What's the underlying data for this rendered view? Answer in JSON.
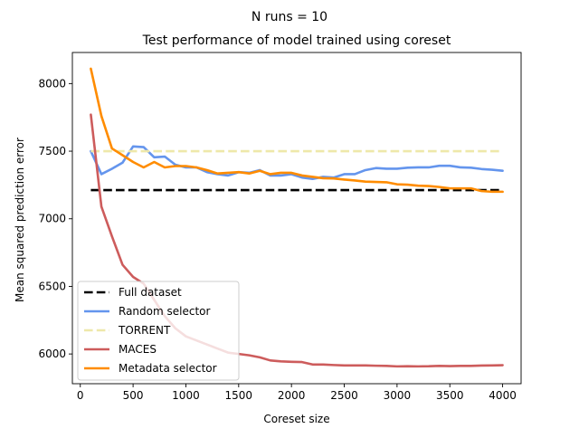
{
  "suptitle": "N runs = 10",
  "chart_data": {
    "type": "line",
    "title": "Test performance of model trained using coreset",
    "xlabel": "Coreset size",
    "ylabel": "Mean squared prediction error",
    "xlim": [
      -75,
      4175
    ],
    "ylim": [
      5780,
      8230
    ],
    "xticks": [
      0,
      500,
      1000,
      1500,
      2000,
      2500,
      3000,
      3500,
      4000
    ],
    "yticks": [
      6000,
      6500,
      7000,
      7500,
      8000
    ],
    "xtick_labels": [
      "0",
      "500",
      "1000",
      "1500",
      "2000",
      "2500",
      "3000",
      "3500",
      "4000"
    ],
    "ytick_labels": [
      "6000",
      "6500",
      "7000",
      "7500",
      "8000"
    ],
    "grid": false,
    "legend_position": "lower-left",
    "x": [
      100,
      200,
      300,
      400,
      500,
      600,
      700,
      800,
      900,
      1000,
      1100,
      1200,
      1300,
      1400,
      1500,
      1600,
      1700,
      1800,
      1900,
      2000,
      2100,
      2200,
      2300,
      2400,
      2500,
      2600,
      2700,
      2800,
      2900,
      3000,
      3100,
      3200,
      3300,
      3400,
      3500,
      3600,
      3700,
      3800,
      3900,
      4000
    ],
    "series": [
      {
        "name": "Full dataset",
        "color": "#000000",
        "dashed": true,
        "values": [
          7212,
          7212,
          7212,
          7212,
          7212,
          7212,
          7212,
          7212,
          7212,
          7212,
          7212,
          7212,
          7212,
          7212,
          7212,
          7212,
          7212,
          7212,
          7212,
          7212,
          7212,
          7212,
          7212,
          7212,
          7212,
          7212,
          7212,
          7212,
          7212,
          7212,
          7212,
          7212,
          7212,
          7212,
          7212,
          7212,
          7212,
          7212,
          7212,
          7212
        ]
      },
      {
        "name": "Random selector",
        "color": "#6495ed",
        "dashed": false,
        "values": [
          7500,
          7330,
          7370,
          7415,
          7535,
          7530,
          7455,
          7460,
          7400,
          7380,
          7380,
          7345,
          7330,
          7320,
          7345,
          7340,
          7360,
          7320,
          7320,
          7330,
          7305,
          7295,
          7310,
          7305,
          7330,
          7330,
          7360,
          7375,
          7370,
          7370,
          7378,
          7380,
          7380,
          7392,
          7392,
          7380,
          7378,
          7368,
          7363,
          7355
        ]
      },
      {
        "name": "TORRENT",
        "color": "#eee8aa",
        "dashed": true,
        "values": [
          7500,
          7500,
          7500,
          7500,
          7500,
          7500,
          7500,
          7500,
          7500,
          7500,
          7500,
          7500,
          7500,
          7500,
          7500,
          7500,
          7500,
          7500,
          7500,
          7500,
          7500,
          7500,
          7500,
          7500,
          7500,
          7500,
          7500,
          7500,
          7500,
          7500,
          7500,
          7500,
          7500,
          7500,
          7500,
          7500,
          7500,
          7500,
          7500,
          7500
        ]
      },
      {
        "name": "MACES",
        "color": "#cd5c5c",
        "dashed": false,
        "values": [
          7770,
          7090,
          6870,
          6660,
          6570,
          6520,
          6400,
          6280,
          6190,
          6130,
          6100,
          6070,
          6040,
          6010,
          6000,
          5990,
          5975,
          5952,
          5945,
          5942,
          5940,
          5922,
          5922,
          5918,
          5915,
          5915,
          5915,
          5913,
          5912,
          5908,
          5909,
          5908,
          5909,
          5912,
          5910,
          5912,
          5912,
          5914,
          5915,
          5917
        ]
      },
      {
        "name": "Metadata selector",
        "color": "#ff8c00",
        "dashed": false,
        "values": [
          8110,
          7760,
          7520,
          7470,
          7420,
          7380,
          7420,
          7380,
          7390,
          7390,
          7380,
          7360,
          7335,
          7340,
          7345,
          7335,
          7355,
          7330,
          7340,
          7340,
          7320,
          7310,
          7300,
          7298,
          7290,
          7283,
          7275,
          7272,
          7270,
          7255,
          7252,
          7245,
          7242,
          7235,
          7225,
          7225,
          7225,
          7205,
          7200,
          7200
        ]
      }
    ]
  }
}
